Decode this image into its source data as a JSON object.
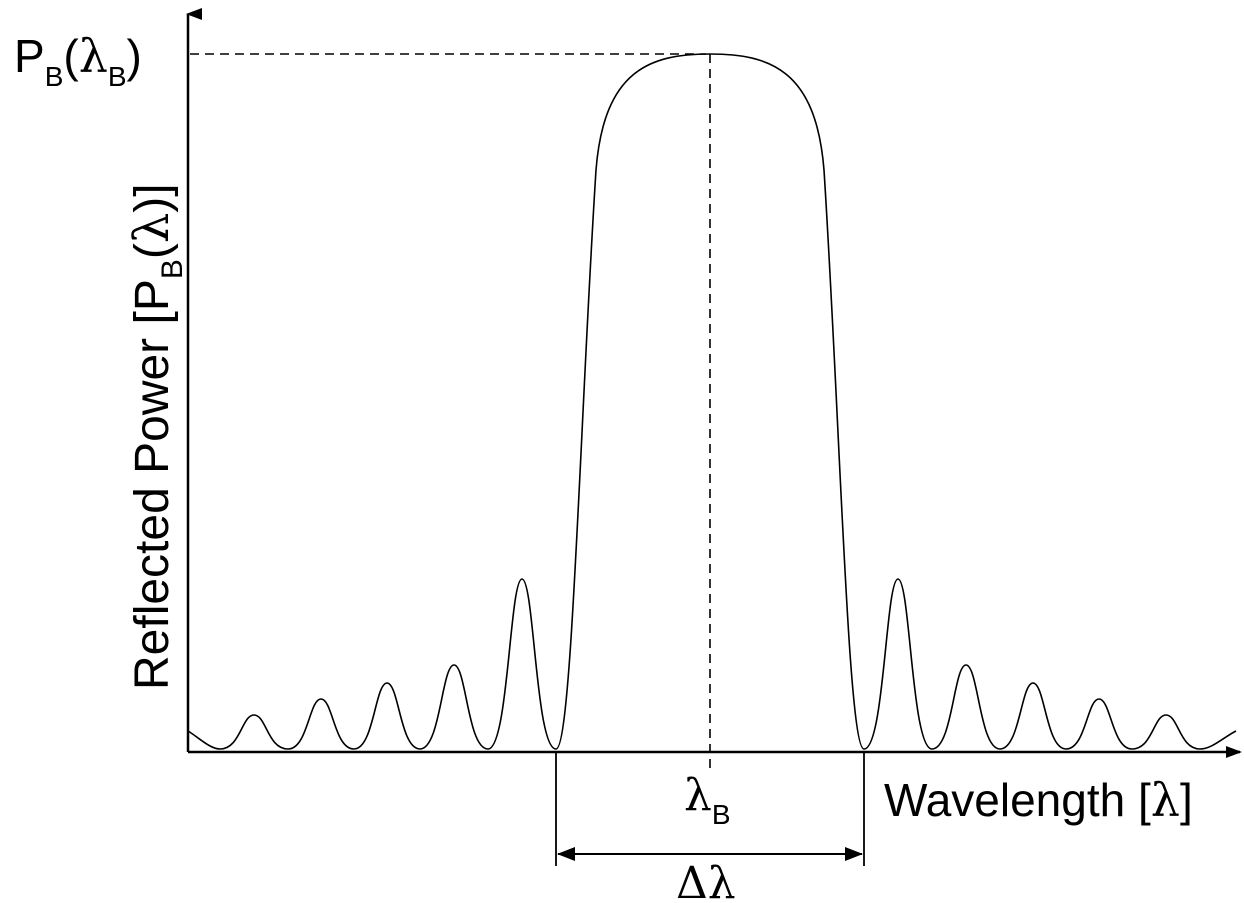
{
  "labels": {
    "peak_label_P": "P",
    "peak_label_sub1": "B",
    "peak_label_open": "(",
    "peak_label_lambda": "λ",
    "peak_label_sub2": "B",
    "peak_label_close": ")",
    "y_axis_main": "Reflected Power [P",
    "y_axis_sub": "B",
    "y_axis_open": "(",
    "y_axis_lambda": "λ",
    "y_axis_close": ")]",
    "x_axis_main": "Wavelength [",
    "x_axis_lambda": "λ",
    "x_axis_close": "]",
    "center_lambda": "λ",
    "center_sub": "B",
    "bandwidth_delta": "Δ",
    "bandwidth_lambda": "λ"
  },
  "colors": {
    "stroke": "#000000",
    "background": "#ffffff"
  }
}
